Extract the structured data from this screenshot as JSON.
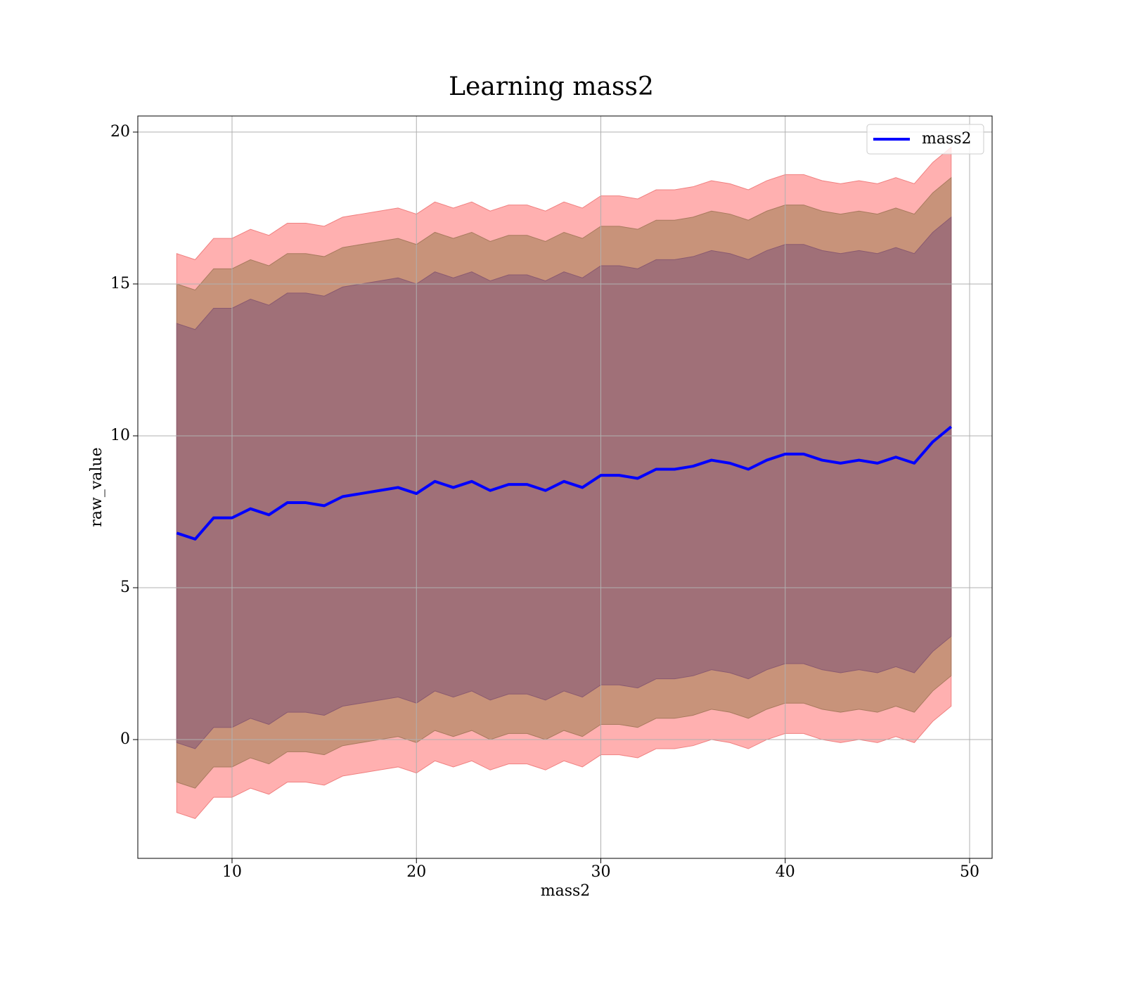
{
  "chart_data": {
    "type": "line",
    "title": "Learning mass2",
    "xlabel": "mass2",
    "ylabel": "raw_value",
    "x": [
      7,
      8,
      9,
      10,
      11,
      12,
      13,
      14,
      15,
      16,
      17,
      18,
      19,
      20,
      21,
      22,
      23,
      24,
      25,
      26,
      27,
      28,
      29,
      30,
      31,
      32,
      33,
      34,
      35,
      36,
      37,
      38,
      39,
      40,
      41,
      42,
      43,
      44,
      45,
      46,
      47,
      48,
      49
    ],
    "series": [
      {
        "name": "mass2",
        "color": "#0000ff",
        "values": [
          6.8,
          6.6,
          7.3,
          7.3,
          7.6,
          7.4,
          7.8,
          7.8,
          7.7,
          8.0,
          8.1,
          8.2,
          8.3,
          8.1,
          8.5,
          8.3,
          8.5,
          8.2,
          8.4,
          8.4,
          8.2,
          8.5,
          8.3,
          8.7,
          8.7,
          8.6,
          8.9,
          8.9,
          9.0,
          9.2,
          9.1,
          8.9,
          9.2,
          9.4,
          9.4,
          9.2,
          9.1,
          9.2,
          9.1,
          9.3,
          9.1,
          9.8,
          10.3
        ]
      }
    ],
    "bands": [
      {
        "color": "#ffb0b0",
        "edge": "#f08080",
        "upper": [
          16.0,
          15.8,
          16.5,
          16.5,
          16.8,
          16.6,
          17.0,
          17.0,
          16.9,
          17.2,
          17.3,
          17.4,
          17.5,
          17.3,
          17.7,
          17.5,
          17.7,
          17.4,
          17.6,
          17.6,
          17.4,
          17.7,
          17.5,
          17.9,
          17.9,
          17.8,
          18.1,
          18.1,
          18.2,
          18.4,
          18.3,
          18.1,
          18.4,
          18.6,
          18.6,
          18.4,
          18.3,
          18.4,
          18.3,
          18.5,
          18.3,
          19.0,
          19.5
        ],
        "lower": [
          -2.4,
          -2.6,
          -1.9,
          -1.9,
          -1.6,
          -1.8,
          -1.4,
          -1.4,
          -1.5,
          -1.2,
          -1.1,
          -1.0,
          -0.9,
          -1.1,
          -0.7,
          -0.9,
          -0.7,
          -1.0,
          -0.8,
          -0.8,
          -1.0,
          -0.7,
          -0.9,
          -0.5,
          -0.5,
          -0.6,
          -0.3,
          -0.3,
          -0.2,
          0.0,
          -0.1,
          -0.3,
          0.0,
          0.2,
          0.2,
          0.0,
          -0.1,
          0.0,
          -0.1,
          0.1,
          -0.1,
          0.6,
          1.1
        ]
      },
      {
        "color": "#c8937a",
        "edge": "#a87a5e",
        "upper": [
          15.0,
          14.8,
          15.5,
          15.5,
          15.8,
          15.6,
          16.0,
          16.0,
          15.9,
          16.2,
          16.3,
          16.4,
          16.5,
          16.3,
          16.7,
          16.5,
          16.7,
          16.4,
          16.6,
          16.6,
          16.4,
          16.7,
          16.5,
          16.9,
          16.9,
          16.8,
          17.1,
          17.1,
          17.2,
          17.4,
          17.3,
          17.1,
          17.4,
          17.6,
          17.6,
          17.4,
          17.3,
          17.4,
          17.3,
          17.5,
          17.3,
          18.0,
          18.5
        ],
        "lower": [
          -1.4,
          -1.6,
          -0.9,
          -0.9,
          -0.6,
          -0.8,
          -0.4,
          -0.4,
          -0.5,
          -0.2,
          -0.1,
          0.0,
          0.1,
          -0.1,
          0.3,
          0.1,
          0.3,
          0.0,
          0.2,
          0.2,
          0.0,
          0.3,
          0.1,
          0.5,
          0.5,
          0.4,
          0.7,
          0.7,
          0.8,
          1.0,
          0.9,
          0.7,
          1.0,
          1.2,
          1.2,
          1.0,
          0.9,
          1.0,
          0.9,
          1.1,
          0.9,
          1.6,
          2.1
        ]
      },
      {
        "color": "#a07078",
        "edge": "#8a5a70",
        "upper": [
          13.7,
          13.5,
          14.2,
          14.2,
          14.5,
          14.3,
          14.7,
          14.7,
          14.6,
          14.9,
          15.0,
          15.1,
          15.2,
          15.0,
          15.4,
          15.2,
          15.4,
          15.1,
          15.3,
          15.3,
          15.1,
          15.4,
          15.2,
          15.6,
          15.6,
          15.5,
          15.8,
          15.8,
          15.9,
          16.1,
          16.0,
          15.8,
          16.1,
          16.3,
          16.3,
          16.1,
          16.0,
          16.1,
          16.0,
          16.2,
          16.0,
          16.7,
          17.2
        ],
        "lower": [
          -0.1,
          -0.3,
          0.4,
          0.4,
          0.7,
          0.5,
          0.9,
          0.9,
          0.8,
          1.1,
          1.2,
          1.3,
          1.4,
          1.2,
          1.6,
          1.4,
          1.6,
          1.3,
          1.5,
          1.5,
          1.3,
          1.6,
          1.4,
          1.8,
          1.8,
          1.7,
          2.0,
          2.0,
          2.1,
          2.3,
          2.2,
          2.0,
          2.3,
          2.5,
          2.5,
          2.3,
          2.2,
          2.3,
          2.2,
          2.4,
          2.2,
          2.9,
          3.4
        ]
      }
    ],
    "xlim": [
      4.89,
      51.22
    ],
    "ylim": [
      -3.91,
      20.53
    ],
    "xticks": [
      10,
      20,
      30,
      40,
      50
    ],
    "yticks": [
      0,
      5,
      10,
      15,
      20
    ],
    "grid": true,
    "legend": "upper right"
  }
}
